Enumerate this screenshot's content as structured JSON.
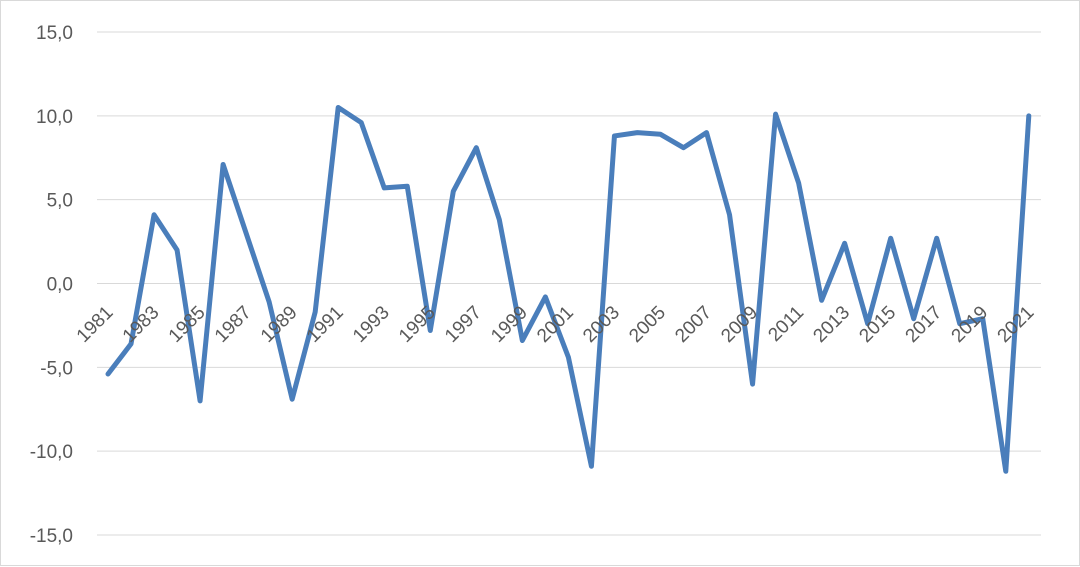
{
  "chart_data": {
    "type": "line",
    "title": "",
    "xlabel": "",
    "ylabel": "",
    "ylim": [
      -15,
      15
    ],
    "ytick_step": 5,
    "ytick_labels": [
      "15,0",
      "10,0",
      "5,0",
      "0,0",
      "-5,0",
      "-10,0",
      "-15,0"
    ],
    "grid": true,
    "legend": "none",
    "x": [
      1981,
      1982,
      1983,
      1984,
      1985,
      1986,
      1987,
      1988,
      1989,
      1990,
      1991,
      1992,
      1993,
      1994,
      1995,
      1996,
      1997,
      1998,
      1999,
      2000,
      2001,
      2002,
      2003,
      2004,
      2005,
      2006,
      2007,
      2008,
      2009,
      2010,
      2011,
      2012,
      2013,
      2014,
      2015,
      2016,
      2017,
      2018,
      2019,
      2020,
      2021
    ],
    "xtick_labels": [
      "1981",
      "1983",
      "1985",
      "1987",
      "1989",
      "1991",
      "1993",
      "1995",
      "1997",
      "1999",
      "2001",
      "2003",
      "2005",
      "2007",
      "2009",
      "2011",
      "2013",
      "2015",
      "2017",
      "2019",
      "2021"
    ],
    "series": [
      {
        "color": "#4a7ebb",
        "values": [
          -5.4,
          -3.6,
          4.1,
          2.0,
          -7.0,
          7.1,
          3.0,
          -1.1,
          -6.9,
          -1.7,
          10.5,
          9.6,
          5.7,
          5.8,
          -2.8,
          5.5,
          8.1,
          3.8,
          -3.4,
          -0.8,
          -4.4,
          -10.9,
          8.8,
          9.0,
          8.9,
          8.1,
          9.0,
          4.1,
          -6.0,
          10.1,
          6.0,
          -1.0,
          2.4,
          -2.4,
          2.7,
          -2.1,
          2.7,
          -2.4,
          -2.1,
          -11.2,
          10.0
        ]
      }
    ]
  }
}
